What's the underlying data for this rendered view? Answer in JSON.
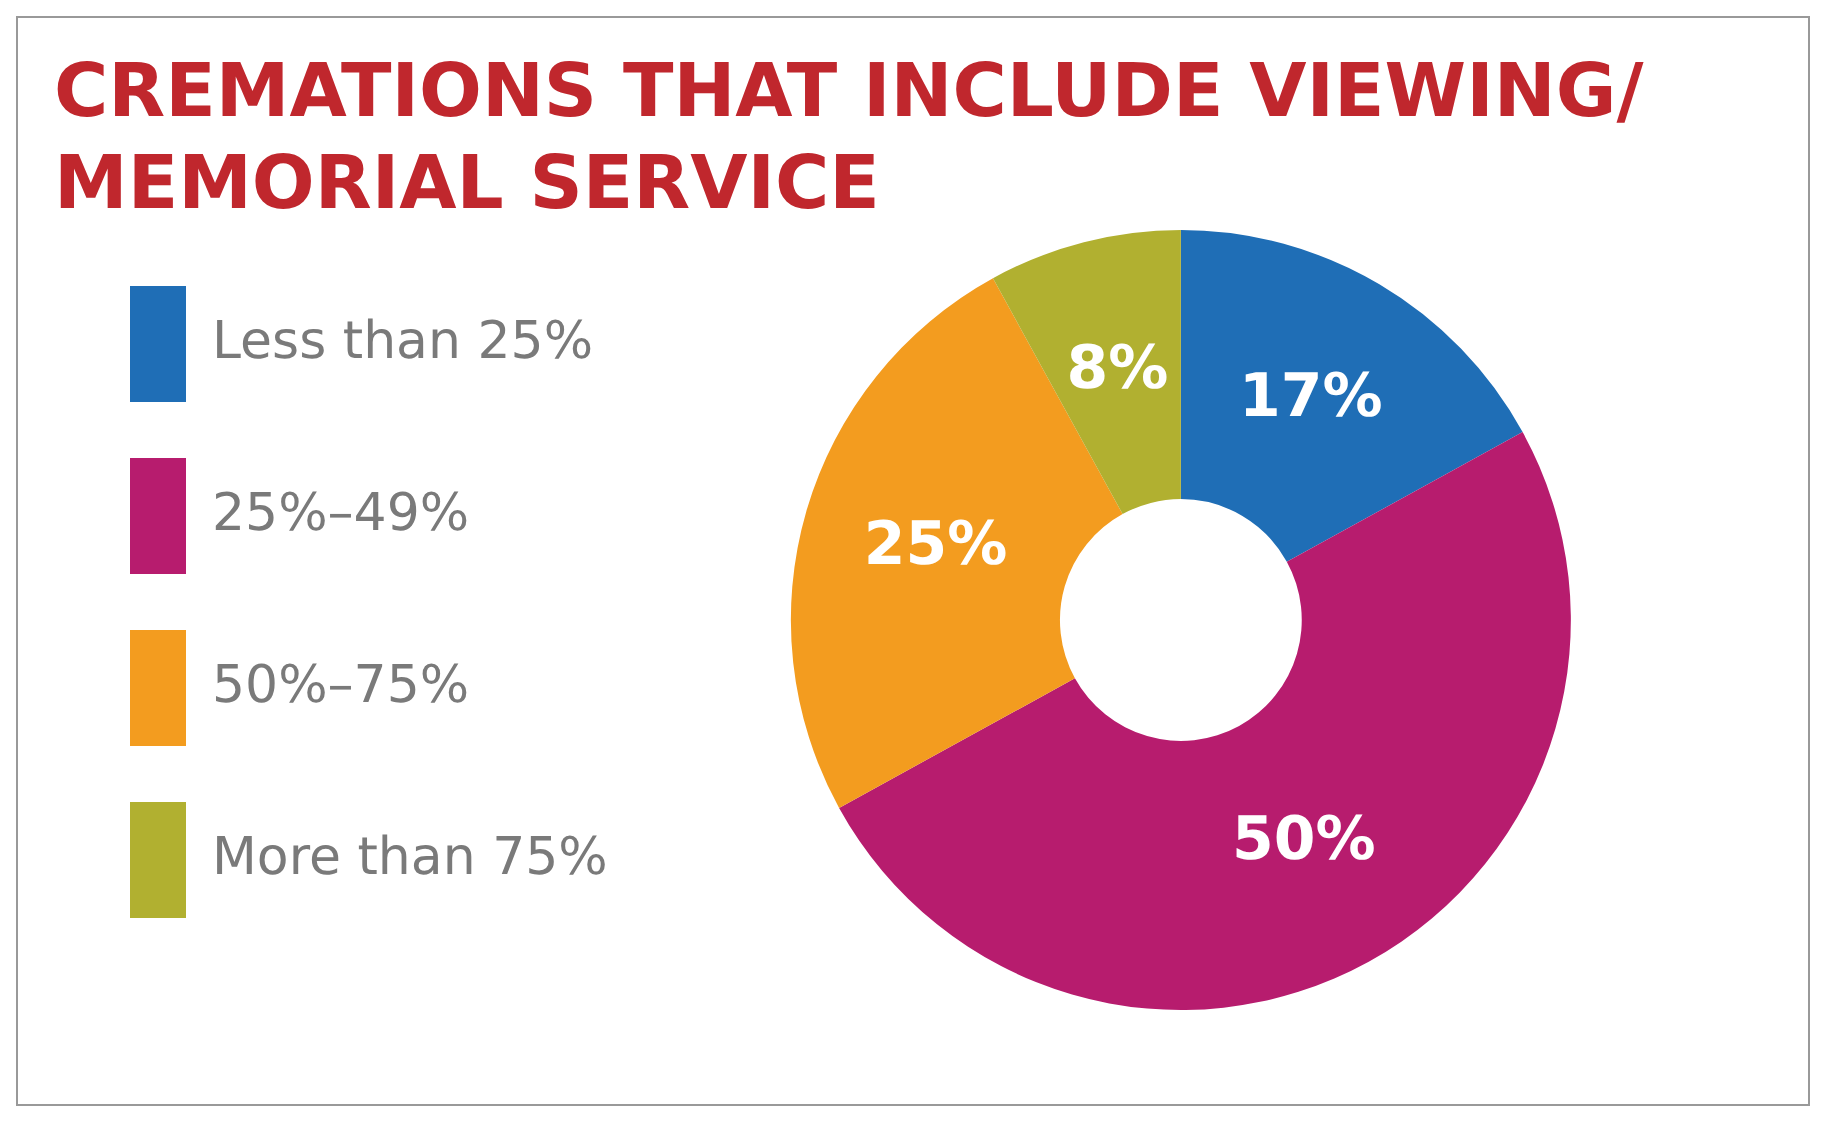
{
  "chart_data": {
    "type": "donut",
    "title": "CREMATIONS THAT INCLUDE VIEWING/ MEMORIAL SERVICE",
    "categories": [
      "Less than 25%",
      "25%–49%",
      "50%–75%",
      "More than 75%"
    ],
    "values": [
      17,
      50,
      25,
      8
    ],
    "colors": [
      "#1f6eb6",
      "#b71c6e",
      "#f39c1f",
      "#b1b030"
    ],
    "value_labels": [
      "17%",
      "50%",
      "25%",
      "8%"
    ],
    "legend": "left"
  }
}
